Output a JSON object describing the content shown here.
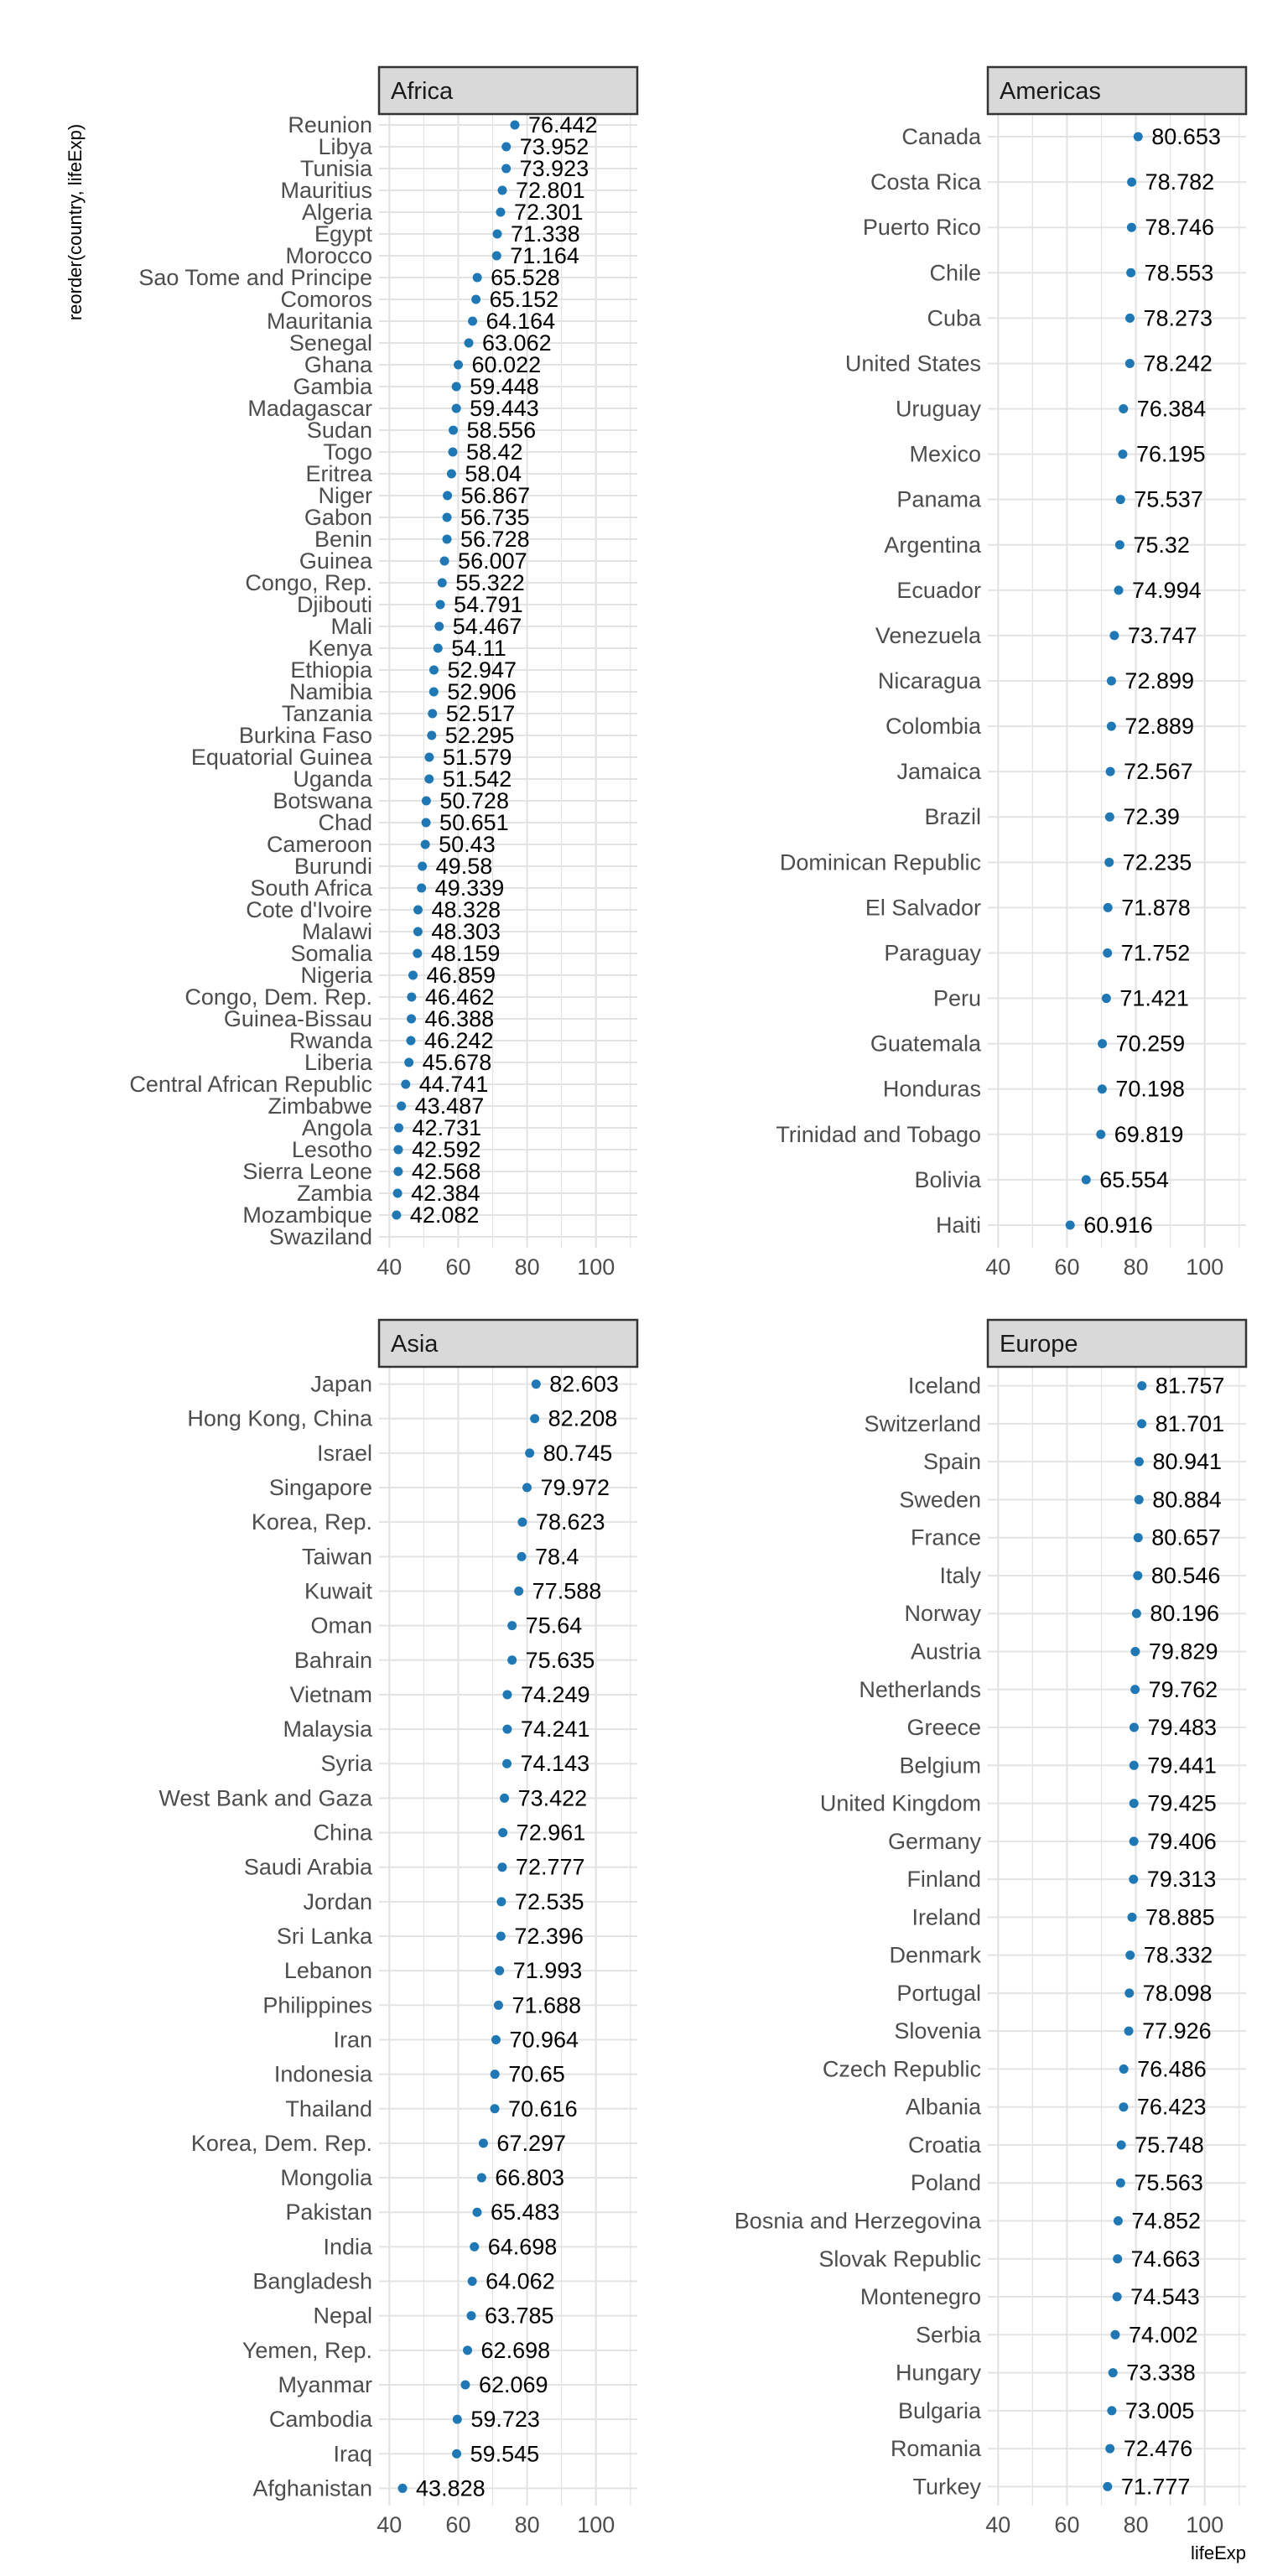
{
  "colors": {
    "point": "#1f78b4",
    "grid": "#e3e3e3",
    "strip_fill": "#d9d9d9",
    "strip_border": "#333333"
  },
  "chart_data": {
    "type": "scatter",
    "xlabel": "lifeExp",
    "ylabel": "reorder(country, lifeExp)",
    "xlim": [
      37,
      112
    ],
    "x_ticks": [
      40,
      60,
      80,
      100
    ],
    "grid": true,
    "facets": [
      {
        "name": "Africa",
        "countries": [
          {
            "country": "Reunion",
            "lifeExp": 76.442
          },
          {
            "country": "Libya",
            "lifeExp": 73.952
          },
          {
            "country": "Tunisia",
            "lifeExp": 73.923
          },
          {
            "country": "Mauritius",
            "lifeExp": 72.801
          },
          {
            "country": "Algeria",
            "lifeExp": 72.301
          },
          {
            "country": "Egypt",
            "lifeExp": 71.338
          },
          {
            "country": "Morocco",
            "lifeExp": 71.164
          },
          {
            "country": "Sao Tome and Principe",
            "lifeExp": 65.528
          },
          {
            "country": "Comoros",
            "lifeExp": 65.152
          },
          {
            "country": "Mauritania",
            "lifeExp": 64.164
          },
          {
            "country": "Senegal",
            "lifeExp": 63.062
          },
          {
            "country": "Ghana",
            "lifeExp": 60.022
          },
          {
            "country": "Gambia",
            "lifeExp": 59.448
          },
          {
            "country": "Madagascar",
            "lifeExp": 59.443
          },
          {
            "country": "Sudan",
            "lifeExp": 58.556
          },
          {
            "country": "Togo",
            "lifeExp": 58.42
          },
          {
            "country": "Eritrea",
            "lifeExp": 58.04
          },
          {
            "country": "Niger",
            "lifeExp": 56.867
          },
          {
            "country": "Gabon",
            "lifeExp": 56.735
          },
          {
            "country": "Benin",
            "lifeExp": 56.728
          },
          {
            "country": "Guinea",
            "lifeExp": 56.007
          },
          {
            "country": "Congo, Rep.",
            "lifeExp": 55.322
          },
          {
            "country": "Djibouti",
            "lifeExp": 54.791
          },
          {
            "country": "Mali",
            "lifeExp": 54.467
          },
          {
            "country": "Kenya",
            "lifeExp": 54.11
          },
          {
            "country": "Ethiopia",
            "lifeExp": 52.947
          },
          {
            "country": "Namibia",
            "lifeExp": 52.906
          },
          {
            "country": "Tanzania",
            "lifeExp": 52.517
          },
          {
            "country": "Burkina Faso",
            "lifeExp": 52.295
          },
          {
            "country": "Equatorial Guinea",
            "lifeExp": 51.579
          },
          {
            "country": "Uganda",
            "lifeExp": 51.542
          },
          {
            "country": "Botswana",
            "lifeExp": 50.728
          },
          {
            "country": "Chad",
            "lifeExp": 50.651
          },
          {
            "country": "Cameroon",
            "lifeExp": 50.43
          },
          {
            "country": "Burundi",
            "lifeExp": 49.58
          },
          {
            "country": "South Africa",
            "lifeExp": 49.339
          },
          {
            "country": "Cote d'Ivoire",
            "lifeExp": 48.328
          },
          {
            "country": "Malawi",
            "lifeExp": 48.303
          },
          {
            "country": "Somalia",
            "lifeExp": 48.159
          },
          {
            "country": "Nigeria",
            "lifeExp": 46.859
          },
          {
            "country": "Congo, Dem. Rep.",
            "lifeExp": 46.462
          },
          {
            "country": "Guinea-Bissau",
            "lifeExp": 46.388
          },
          {
            "country": "Rwanda",
            "lifeExp": 46.242
          },
          {
            "country": "Liberia",
            "lifeExp": 45.678
          },
          {
            "country": "Central African Republic",
            "lifeExp": 44.741
          },
          {
            "country": "Zimbabwe",
            "lifeExp": 43.487
          },
          {
            "country": "Angola",
            "lifeExp": 42.731
          },
          {
            "country": "Lesotho",
            "lifeExp": 42.592
          },
          {
            "country": "Sierra Leone",
            "lifeExp": 42.568
          },
          {
            "country": "Zambia",
            "lifeExp": 42.384
          },
          {
            "country": "Mozambique",
            "lifeExp": 42.082
          },
          {
            "country": "Swaziland",
            "lifeExp": null
          }
        ]
      },
      {
        "name": "Americas",
        "countries": [
          {
            "country": "Canada",
            "lifeExp": 80.653
          },
          {
            "country": "Costa Rica",
            "lifeExp": 78.782
          },
          {
            "country": "Puerto Rico",
            "lifeExp": 78.746
          },
          {
            "country": "Chile",
            "lifeExp": 78.553
          },
          {
            "country": "Cuba",
            "lifeExp": 78.273
          },
          {
            "country": "United States",
            "lifeExp": 78.242
          },
          {
            "country": "Uruguay",
            "lifeExp": 76.384
          },
          {
            "country": "Mexico",
            "lifeExp": 76.195
          },
          {
            "country": "Panama",
            "lifeExp": 75.537
          },
          {
            "country": "Argentina",
            "lifeExp": 75.32
          },
          {
            "country": "Ecuador",
            "lifeExp": 74.994
          },
          {
            "country": "Venezuela",
            "lifeExp": 73.747
          },
          {
            "country": "Nicaragua",
            "lifeExp": 72.899
          },
          {
            "country": "Colombia",
            "lifeExp": 72.889
          },
          {
            "country": "Jamaica",
            "lifeExp": 72.567
          },
          {
            "country": "Brazil",
            "lifeExp": 72.39
          },
          {
            "country": "Dominican Republic",
            "lifeExp": 72.235
          },
          {
            "country": "El Salvador",
            "lifeExp": 71.878
          },
          {
            "country": "Paraguay",
            "lifeExp": 71.752
          },
          {
            "country": "Peru",
            "lifeExp": 71.421
          },
          {
            "country": "Guatemala",
            "lifeExp": 70.259
          },
          {
            "country": "Honduras",
            "lifeExp": 70.198
          },
          {
            "country": "Trinidad and Tobago",
            "lifeExp": 69.819
          },
          {
            "country": "Bolivia",
            "lifeExp": 65.554
          },
          {
            "country": "Haiti",
            "lifeExp": 60.916
          }
        ]
      },
      {
        "name": "Asia",
        "countries": [
          {
            "country": "Japan",
            "lifeExp": 82.603
          },
          {
            "country": "Hong Kong, China",
            "lifeExp": 82.208
          },
          {
            "country": "Israel",
            "lifeExp": 80.745
          },
          {
            "country": "Singapore",
            "lifeExp": 79.972
          },
          {
            "country": "Korea, Rep.",
            "lifeExp": 78.623
          },
          {
            "country": "Taiwan",
            "lifeExp": 78.4
          },
          {
            "country": "Kuwait",
            "lifeExp": 77.588
          },
          {
            "country": "Oman",
            "lifeExp": 75.64
          },
          {
            "country": "Bahrain",
            "lifeExp": 75.635
          },
          {
            "country": "Vietnam",
            "lifeExp": 74.249
          },
          {
            "country": "Malaysia",
            "lifeExp": 74.241
          },
          {
            "country": "Syria",
            "lifeExp": 74.143
          },
          {
            "country": "West Bank and Gaza",
            "lifeExp": 73.422
          },
          {
            "country": "China",
            "lifeExp": 72.961
          },
          {
            "country": "Saudi Arabia",
            "lifeExp": 72.777
          },
          {
            "country": "Jordan",
            "lifeExp": 72.535
          },
          {
            "country": "Sri Lanka",
            "lifeExp": 72.396
          },
          {
            "country": "Lebanon",
            "lifeExp": 71.993
          },
          {
            "country": "Philippines",
            "lifeExp": 71.688
          },
          {
            "country": "Iran",
            "lifeExp": 70.964
          },
          {
            "country": "Indonesia",
            "lifeExp": 70.65
          },
          {
            "country": "Thailand",
            "lifeExp": 70.616
          },
          {
            "country": "Korea, Dem. Rep.",
            "lifeExp": 67.297
          },
          {
            "country": "Mongolia",
            "lifeExp": 66.803
          },
          {
            "country": "Pakistan",
            "lifeExp": 65.483
          },
          {
            "country": "India",
            "lifeExp": 64.698
          },
          {
            "country": "Bangladesh",
            "lifeExp": 64.062
          },
          {
            "country": "Nepal",
            "lifeExp": 63.785
          },
          {
            "country": "Yemen, Rep.",
            "lifeExp": 62.698
          },
          {
            "country": "Myanmar",
            "lifeExp": 62.069
          },
          {
            "country": "Cambodia",
            "lifeExp": 59.723
          },
          {
            "country": "Iraq",
            "lifeExp": 59.545
          },
          {
            "country": "Afghanistan",
            "lifeExp": 43.828
          }
        ]
      },
      {
        "name": "Europe",
        "countries": [
          {
            "country": "Iceland",
            "lifeExp": 81.757
          },
          {
            "country": "Switzerland",
            "lifeExp": 81.701
          },
          {
            "country": "Spain",
            "lifeExp": 80.941
          },
          {
            "country": "Sweden",
            "lifeExp": 80.884
          },
          {
            "country": "France",
            "lifeExp": 80.657
          },
          {
            "country": "Italy",
            "lifeExp": 80.546
          },
          {
            "country": "Norway",
            "lifeExp": 80.196
          },
          {
            "country": "Austria",
            "lifeExp": 79.829
          },
          {
            "country": "Netherlands",
            "lifeExp": 79.762
          },
          {
            "country": "Greece",
            "lifeExp": 79.483
          },
          {
            "country": "Belgium",
            "lifeExp": 79.441
          },
          {
            "country": "United Kingdom",
            "lifeExp": 79.425
          },
          {
            "country": "Germany",
            "lifeExp": 79.406
          },
          {
            "country": "Finland",
            "lifeExp": 79.313
          },
          {
            "country": "Ireland",
            "lifeExp": 78.885
          },
          {
            "country": "Denmark",
            "lifeExp": 78.332
          },
          {
            "country": "Portugal",
            "lifeExp": 78.098
          },
          {
            "country": "Slovenia",
            "lifeExp": 77.926
          },
          {
            "country": "Czech Republic",
            "lifeExp": 76.486
          },
          {
            "country": "Albania",
            "lifeExp": 76.423
          },
          {
            "country": "Croatia",
            "lifeExp": 75.748
          },
          {
            "country": "Poland",
            "lifeExp": 75.563
          },
          {
            "country": "Bosnia and Herzegovina",
            "lifeExp": 74.852
          },
          {
            "country": "Slovak Republic",
            "lifeExp": 74.663
          },
          {
            "country": "Montenegro",
            "lifeExp": 74.543
          },
          {
            "country": "Serbia",
            "lifeExp": 74.002
          },
          {
            "country": "Hungary",
            "lifeExp": 73.338
          },
          {
            "country": "Bulgaria",
            "lifeExp": 73.005
          },
          {
            "country": "Romania",
            "lifeExp": 72.476
          },
          {
            "country": "Turkey",
            "lifeExp": 71.777
          }
        ]
      }
    ]
  }
}
